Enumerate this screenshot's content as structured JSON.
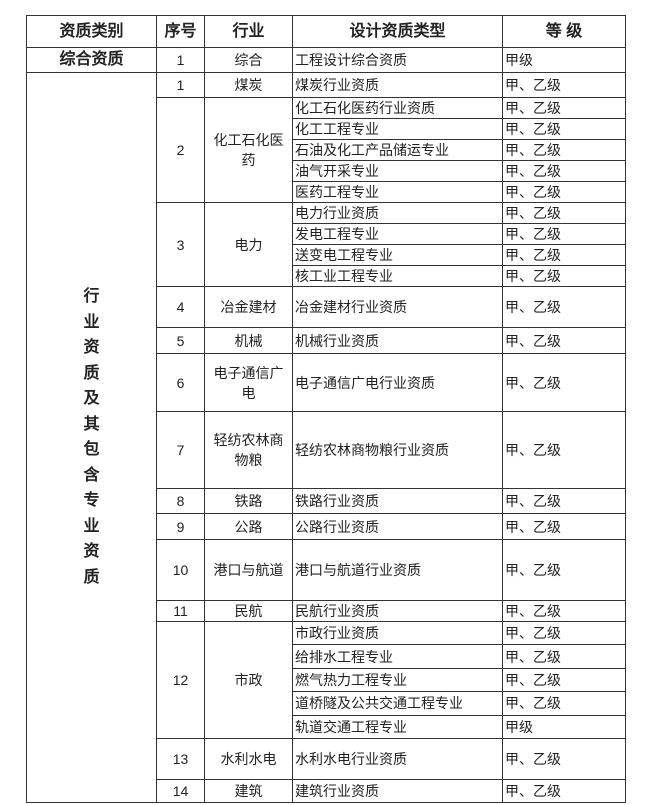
{
  "headers": [
    "资质类别",
    "序号",
    "行业",
    "设计资质类型",
    "等 级"
  ],
  "comprehensive": {
    "category": "综合资质",
    "no": "1",
    "industry": "综合",
    "type": "工程设计综合资质",
    "grade": "甲级"
  },
  "industry_category": "行业资质及其包含专业资质",
  "groups": [
    {
      "no": "1",
      "industry": "煤炭",
      "items": [
        [
          "煤炭行业资质",
          "甲、乙级"
        ]
      ]
    },
    {
      "no": "2",
      "industry": "化工石化医药",
      "items": [
        [
          "化工石化医药行业资质",
          "甲、乙级"
        ],
        [
          "化工工程专业",
          "甲、乙级"
        ],
        [
          "石油及化工产品储运专业",
          "甲、乙级"
        ],
        [
          "油气开采专业",
          "甲、乙级"
        ],
        [
          "医药工程专业",
          "甲、乙级"
        ]
      ]
    },
    {
      "no": "3",
      "industry": "电力",
      "items": [
        [
          "电力行业资质",
          "甲、乙级"
        ],
        [
          "发电工程专业",
          "甲、乙级"
        ],
        [
          "送变电工程专业",
          "甲、乙级"
        ],
        [
          "核工业工程专业",
          "甲、乙级"
        ]
      ]
    },
    {
      "no": "4",
      "industry": "冶金建材",
      "items": [
        [
          "冶金建材行业资质",
          "甲、乙级"
        ]
      ]
    },
    {
      "no": "5",
      "industry": "机械",
      "items": [
        [
          "机械行业资质",
          "甲、乙级"
        ]
      ]
    },
    {
      "no": "6",
      "industry": "电子通信广电",
      "items": [
        [
          "电子通信广电行业资质",
          "甲、乙级"
        ]
      ]
    },
    {
      "no": "7",
      "industry": "轻纺农林商物粮",
      "items": [
        [
          "轻纺农林商物粮行业资质",
          "甲、乙级"
        ]
      ]
    },
    {
      "no": "8",
      "industry": "铁路",
      "items": [
        [
          "铁路行业资质",
          "甲、乙级"
        ]
      ]
    },
    {
      "no": "9",
      "industry": "公路",
      "items": [
        [
          "公路行业资质",
          "甲、乙级"
        ]
      ]
    },
    {
      "no": "10",
      "industry": "港口与航道",
      "items": [
        [
          "港口与航道行业资质",
          "甲、乙级"
        ]
      ]
    },
    {
      "no": "11",
      "industry": "民航",
      "items": [
        [
          "民航行业资质",
          "甲、乙级"
        ]
      ]
    },
    {
      "no": "12",
      "industry": "市政",
      "items": [
        [
          "市政行业资质",
          "甲、乙级"
        ],
        [
          "给排水工程专业",
          "甲、乙级"
        ],
        [
          "燃气热力工程专业",
          "甲、乙级"
        ],
        [
          "道桥隧及公共交通工程专业",
          "甲、乙级"
        ],
        [
          "轨道交通工程专业",
          "甲级"
        ]
      ]
    },
    {
      "no": "13",
      "industry": "水利水电",
      "items": [
        [
          "水利水电行业资质",
          "甲、乙级"
        ]
      ]
    },
    {
      "no": "14",
      "industry": "建筑",
      "items": [
        [
          "建筑行业资质",
          "甲、乙级"
        ]
      ]
    }
  ]
}
